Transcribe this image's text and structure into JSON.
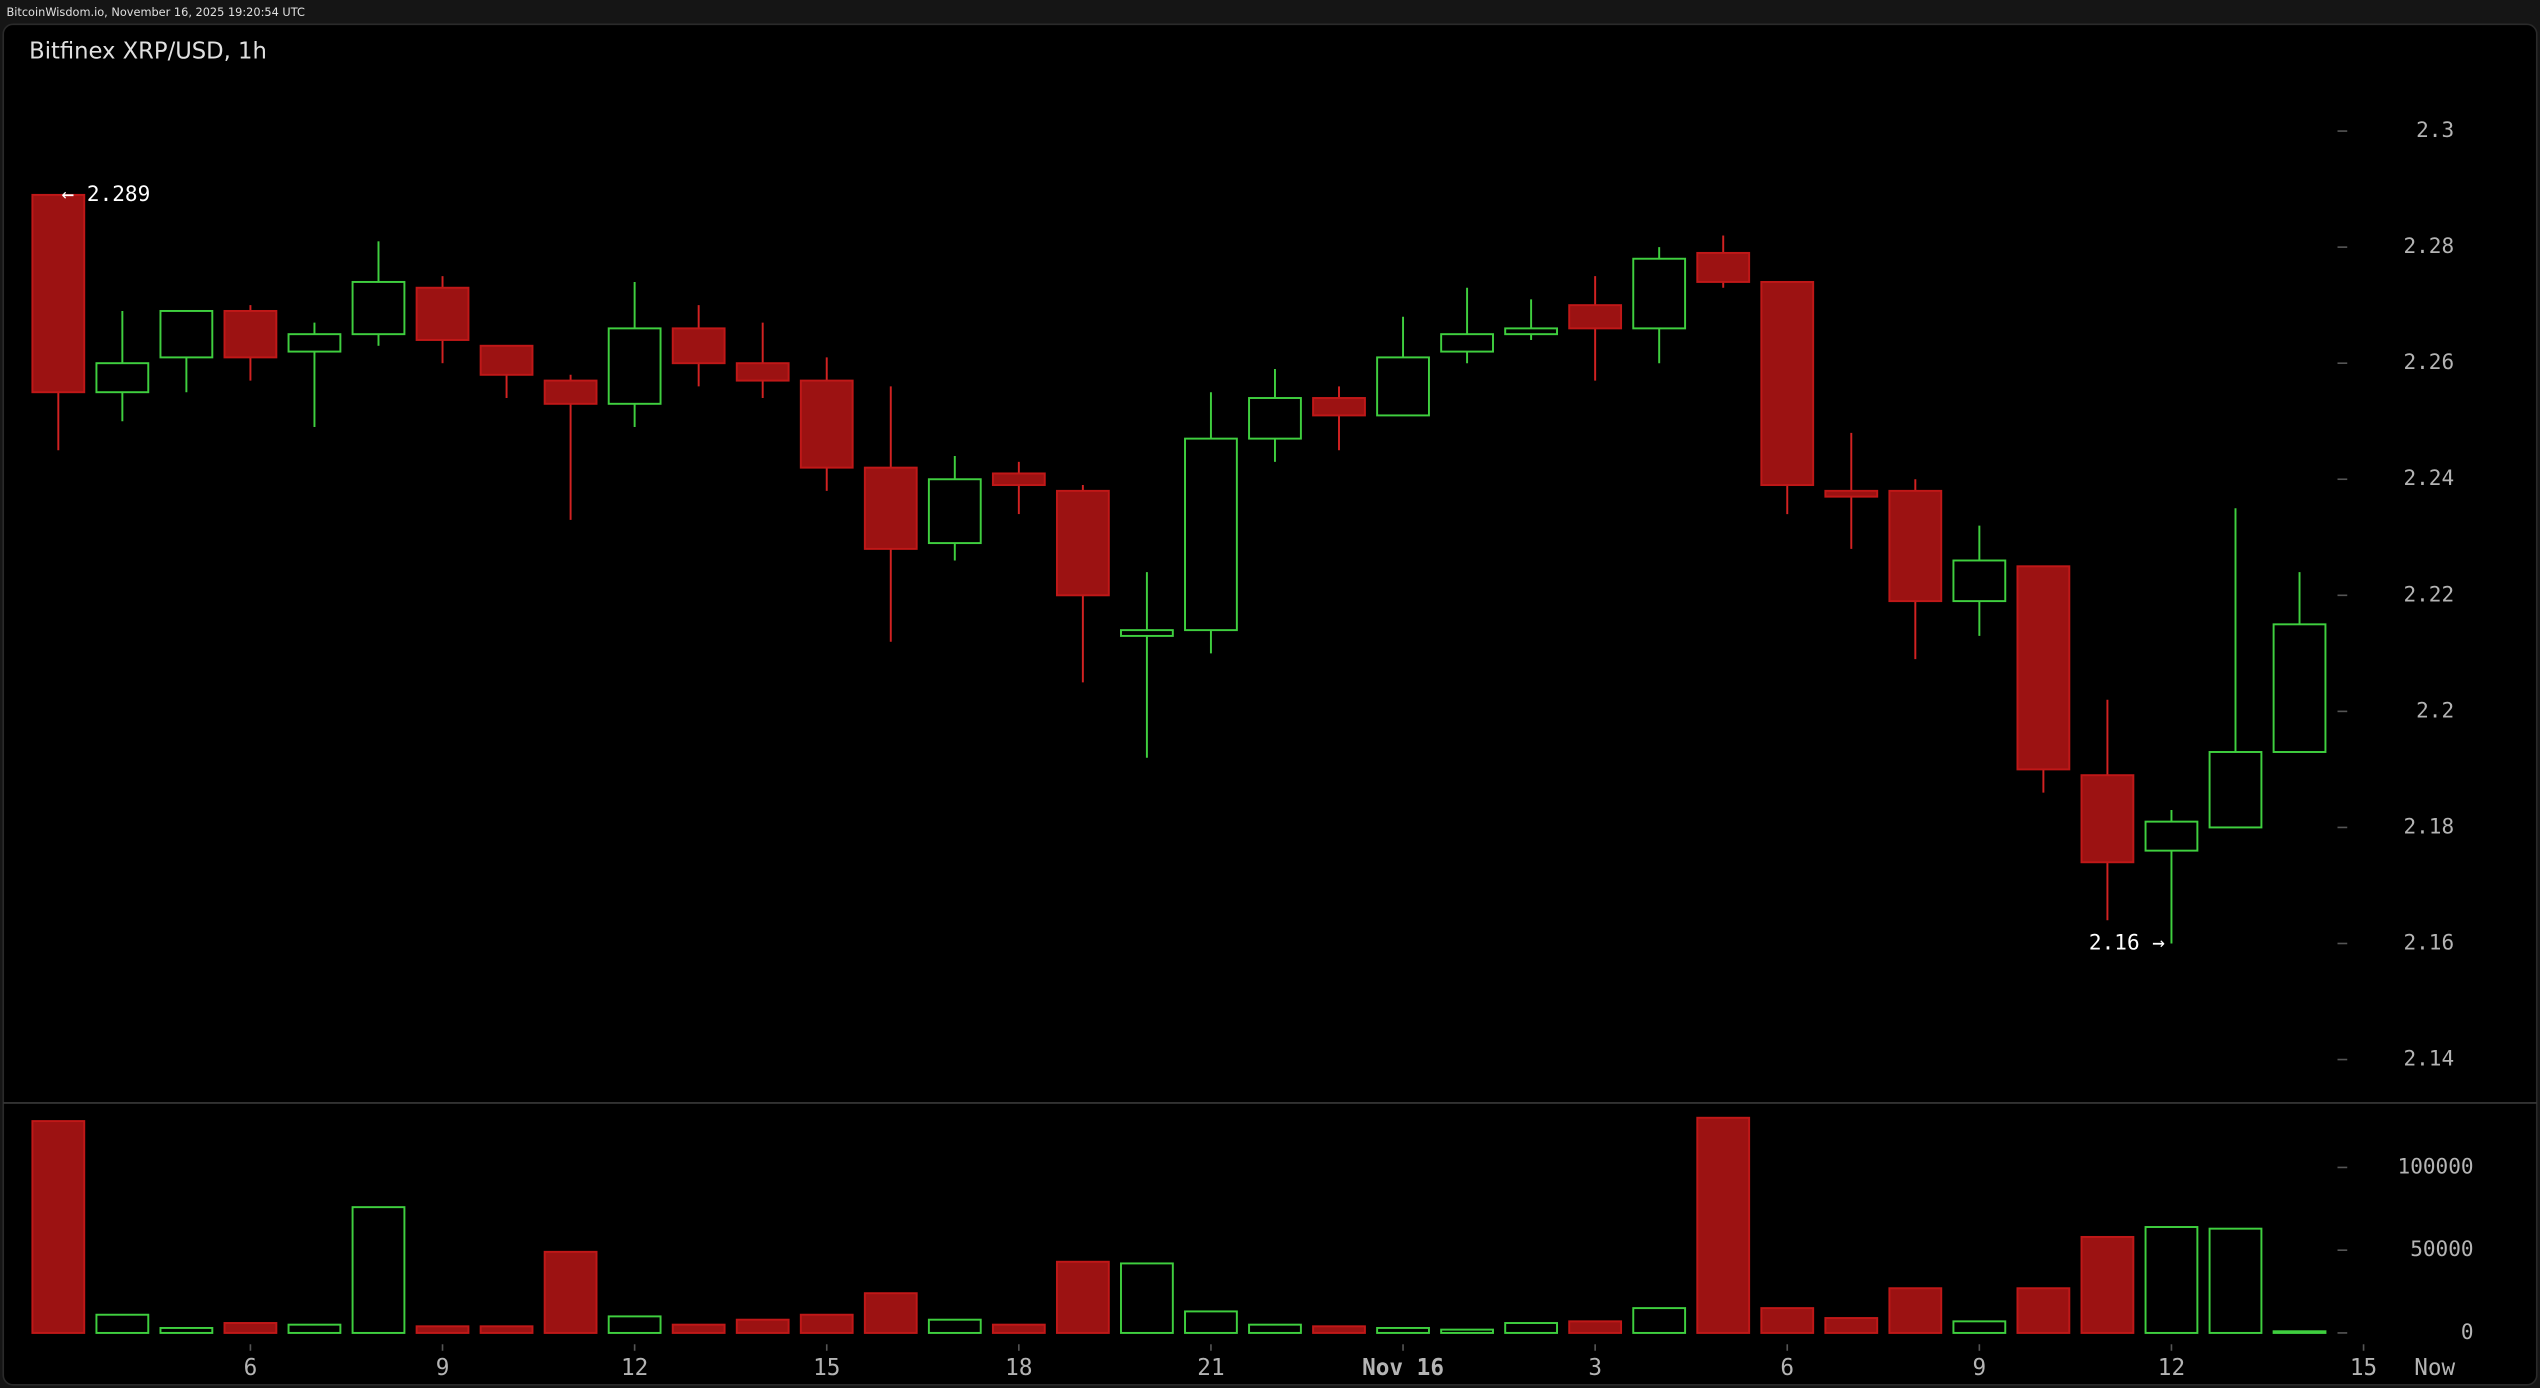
{
  "header": "BitcoinWisdom.io, November 16, 2025 19:20:54 UTC",
  "chart_data": {
    "type": "candlestick",
    "title": "Bitfinex XRP/USD, 1h",
    "open": [
      2.289,
      2.255,
      2.261,
      2.269,
      2.262,
      2.265,
      2.273,
      2.263,
      2.257,
      2.253,
      2.266,
      2.26,
      2.257,
      2.242,
      2.229,
      2.241,
      2.238,
      2.213,
      2.214,
      2.247,
      2.254,
      2.251,
      2.262,
      2.265,
      2.27,
      2.266,
      2.279,
      2.274,
      2.238,
      2.238,
      2.219,
      2.225,
      2.189,
      2.176,
      2.18,
      2.193
    ],
    "high": [
      2.289,
      2.269,
      2.269,
      2.27,
      2.267,
      2.281,
      2.275,
      2.263,
      2.258,
      2.274,
      2.27,
      2.267,
      2.261,
      2.256,
      2.244,
      2.243,
      2.239,
      2.224,
      2.255,
      2.259,
      2.256,
      2.268,
      2.273,
      2.271,
      2.275,
      2.28,
      2.282,
      2.274,
      2.248,
      2.24,
      2.232,
      2.225,
      2.202,
      2.183,
      2.235,
      2.224
    ],
    "low": [
      2.245,
      2.25,
      2.255,
      2.257,
      2.249,
      2.263,
      2.26,
      2.254,
      2.233,
      2.249,
      2.256,
      2.254,
      2.238,
      2.212,
      2.226,
      2.234,
      2.205,
      2.192,
      2.21,
      2.243,
      2.245,
      2.251,
      2.26,
      2.264,
      2.257,
      2.26,
      2.273,
      2.234,
      2.228,
      2.209,
      2.213,
      2.186,
      2.164,
      2.16,
      2.18,
      2.193
    ],
    "close": [
      2.255,
      2.26,
      2.269,
      2.261,
      2.265,
      2.274,
      2.264,
      2.258,
      2.253,
      2.266,
      2.26,
      2.257,
      2.242,
      2.228,
      2.24,
      2.239,
      2.22,
      2.214,
      2.247,
      2.254,
      2.251,
      2.261,
      2.265,
      2.266,
      2.266,
      2.278,
      2.274,
      2.239,
      2.237,
      2.219,
      2.226,
      2.19,
      2.174,
      2.181,
      2.193,
      2.215
    ],
    "volume": [
      128000,
      11000,
      3000,
      6000,
      5000,
      76000,
      4000,
      4000,
      49000,
      10000,
      5000,
      8000,
      11000,
      24000,
      8000,
      5000,
      43000,
      42000,
      13000,
      5000,
      4000,
      3000,
      2000,
      6000,
      7000,
      15000,
      130000,
      15000,
      9000,
      27000,
      7000,
      27000,
      58000,
      64000,
      63000,
      1000
    ],
    "up_color": "#3fcf3f",
    "down_color": "#9c1212",
    "ylim": [
      2.1328,
      2.3184
    ],
    "yticks": [
      2.14,
      2.16,
      2.18,
      2.2,
      2.22,
      2.24,
      2.26,
      2.28,
      2.3
    ],
    "vlim": [
      0,
      137000
    ],
    "vticks": [
      0,
      50000,
      100000
    ],
    "xticks": [
      {
        "value": 3,
        "label": "6"
      },
      {
        "value": 6,
        "label": "9"
      },
      {
        "value": 9,
        "label": "12"
      },
      {
        "value": 12,
        "label": "15"
      },
      {
        "value": 15,
        "label": "18"
      },
      {
        "value": 18,
        "label": "21"
      },
      {
        "value": 21,
        "label": "Nov 16"
      },
      {
        "value": 24,
        "label": "3"
      },
      {
        "value": 27,
        "label": "6"
      },
      {
        "value": 30,
        "label": "9"
      },
      {
        "value": 33,
        "label": "12"
      },
      {
        "value": 36,
        "label": "15"
      }
    ],
    "now_label": "Now",
    "annotations": [
      {
        "label": "← 2.289",
        "value": 2.289,
        "index": 0
      },
      {
        "label": "2.16 →",
        "value": 2.16,
        "index": 33
      }
    ]
  }
}
